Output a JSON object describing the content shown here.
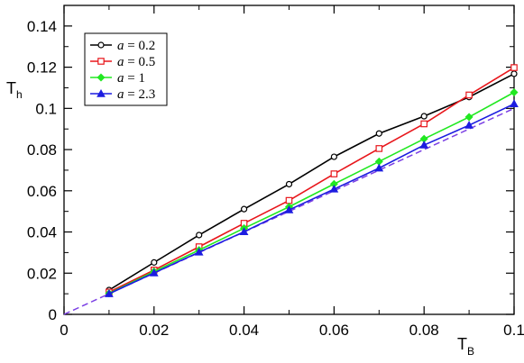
{
  "chart_data": {
    "type": "line",
    "xlabel": {
      "main": "T",
      "sub": "B"
    },
    "ylabel": {
      "main": "T",
      "sub": "h"
    },
    "xlim": [
      0,
      0.1
    ],
    "ylim": [
      0,
      0.15
    ],
    "xticks": [
      0,
      0.02,
      0.04,
      0.06,
      0.08,
      0.1
    ],
    "xtick_labels": [
      "0",
      "0.02",
      "0.04",
      "0.06",
      "0.08",
      "0.1"
    ],
    "yticks": [
      0,
      0.02,
      0.04,
      0.06,
      0.08,
      0.1,
      0.12,
      0.14
    ],
    "ytick_labels": [
      "0",
      "0.02",
      "0.04",
      "0.06",
      "0.08",
      "0.1",
      "0.12",
      "0.14"
    ],
    "grid": false,
    "legend_position": "top-left",
    "x": [
      0.01,
      0.02,
      0.03,
      0.04,
      0.05,
      0.06,
      0.07,
      0.08,
      0.09,
      0.1
    ],
    "series": [
      {
        "name": "a = 0.2",
        "var": "a",
        "eq": " = 0.2",
        "color": "#000000",
        "marker": "circle",
        "values": [
          0.0118,
          0.0252,
          0.0385,
          0.0511,
          0.0632,
          0.0765,
          0.0878,
          0.0962,
          0.1055,
          0.1168
        ]
      },
      {
        "name": "a = 0.5",
        "var": "a",
        "eq": " = 0.5",
        "color": "#e8161b",
        "marker": "square",
        "values": [
          0.0108,
          0.0215,
          0.0328,
          0.0442,
          0.0553,
          0.0682,
          0.0805,
          0.0925,
          0.1065,
          0.1198
        ]
      },
      {
        "name": "a = 1",
        "var": "a",
        "eq": " = 1",
        "color": "#21e821",
        "marker": "diamond",
        "values": [
          0.0102,
          0.0208,
          0.0312,
          0.0418,
          0.0522,
          0.0633,
          0.0742,
          0.0852,
          0.0958,
          0.1078
        ]
      },
      {
        "name": "a = 2.3",
        "var": "a",
        "eq": " = 2.3",
        "color": "#1c1ce0",
        "marker": "triangle",
        "values": [
          0.01,
          0.0201,
          0.0302,
          0.0401,
          0.0507,
          0.0608,
          0.071,
          0.0822,
          0.0918,
          0.1022
        ]
      }
    ],
    "reference_line": {
      "x": [
        0,
        0.1
      ],
      "y": [
        0,
        0.1
      ],
      "color": "#7b3fe4",
      "style": "dashed"
    }
  }
}
